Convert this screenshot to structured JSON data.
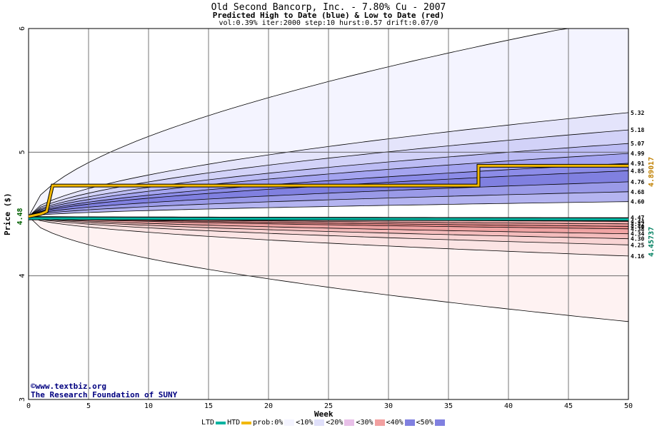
{
  "chart_data": {
    "type": "area",
    "title": "Old Second Bancorp, Inc. - 7.80% Cu - 2007",
    "subtitle": "Predicted High to Date (blue) &  Low to Date (red)",
    "params": "vol:0.39% iter:2000 step:10 hurst:0.57 drift:0.07/0",
    "xlabel": "Week",
    "ylabel": "Price ($)",
    "xlim": [
      0,
      50
    ],
    "ylim": [
      3,
      6
    ],
    "x_ticks": [
      0,
      5,
      10,
      15,
      20,
      25,
      30,
      35,
      40,
      45,
      50
    ],
    "y_ticks": [
      3,
      4,
      5,
      6
    ],
    "start_price": "4.48",
    "htd_current": "4.89017",
    "ltd_current": "4.45737",
    "htd_series": {
      "name": "HTD",
      "x": [
        0,
        1,
        1.5,
        2,
        37.5,
        37.5,
        50
      ],
      "values": [
        4.48,
        4.5,
        4.52,
        4.73,
        4.73,
        4.89,
        4.89
      ]
    },
    "ltd_series": {
      "name": "LTD",
      "x": [
        0,
        50
      ],
      "values": [
        4.465,
        4.457
      ]
    },
    "high_quantiles": [
      {
        "end": 6.1,
        "label": ""
      },
      {
        "end": 5.32,
        "label": "5.32"
      },
      {
        "end": 5.18,
        "label": "5.18"
      },
      {
        "end": 5.07,
        "label": "5.07"
      },
      {
        "end": 4.99,
        "label": "4.99"
      },
      {
        "end": 4.91,
        "label": "4.91"
      },
      {
        "end": 4.85,
        "label": "4.85"
      },
      {
        "end": 4.76,
        "label": "4.76"
      },
      {
        "end": 4.68,
        "label": "4.68"
      },
      {
        "end": 4.6,
        "label": "4.60"
      }
    ],
    "low_quantiles": [
      {
        "end": 4.47,
        "label": "4.47"
      },
      {
        "end": 4.44,
        "label": "4.44"
      },
      {
        "end": 4.42,
        "label": "4.42"
      },
      {
        "end": 4.4,
        "label": "4.40"
      },
      {
        "end": 4.38,
        "label": "4.38"
      },
      {
        "end": 4.34,
        "label": "4.34"
      },
      {
        "end": 4.3,
        "label": "4.30"
      },
      {
        "end": 4.25,
        "label": "4.25"
      },
      {
        "end": 4.16,
        "label": "4.16"
      },
      {
        "end": 3.63,
        "label": ""
      }
    ],
    "high_band_colors": [
      "#f4f4ff",
      "#e4e4fb",
      "#d2d2f8",
      "#bcbcf4",
      "#a4a4f0",
      "#8c8ce8",
      "#8080e0",
      "#9a9ae8",
      "#b4b4f0"
    ],
    "low_band_colors": [
      "#f7c9c9",
      "#f4b4b4",
      "#f09c9c",
      "#ec8c8c",
      "#f0a4a4",
      "#f4bcbc",
      "#f8d4d4",
      "#fbe4e4",
      "#fef2f2"
    ],
    "grid": true
  },
  "credit": {
    "line1": "©www.textbiz.org",
    "line2": "The Research Foundation of SUNY"
  },
  "legend": {
    "ltd": "LTD",
    "htd": "HTD",
    "prob_prefix": "prob:0%",
    "items": [
      {
        "label": "<10%",
        "color": "#f4f4ff"
      },
      {
        "label": "<20%",
        "color": "#e0e0fa"
      },
      {
        "label": "<30%",
        "color": "#e8c0e8"
      },
      {
        "label": "<40%",
        "color": "#f2a0a0"
      },
      {
        "label": "<50%",
        "color": "#8080e0"
      }
    ],
    "ltd_color": "#00b3a0",
    "htd_color": "#f2b800"
  }
}
